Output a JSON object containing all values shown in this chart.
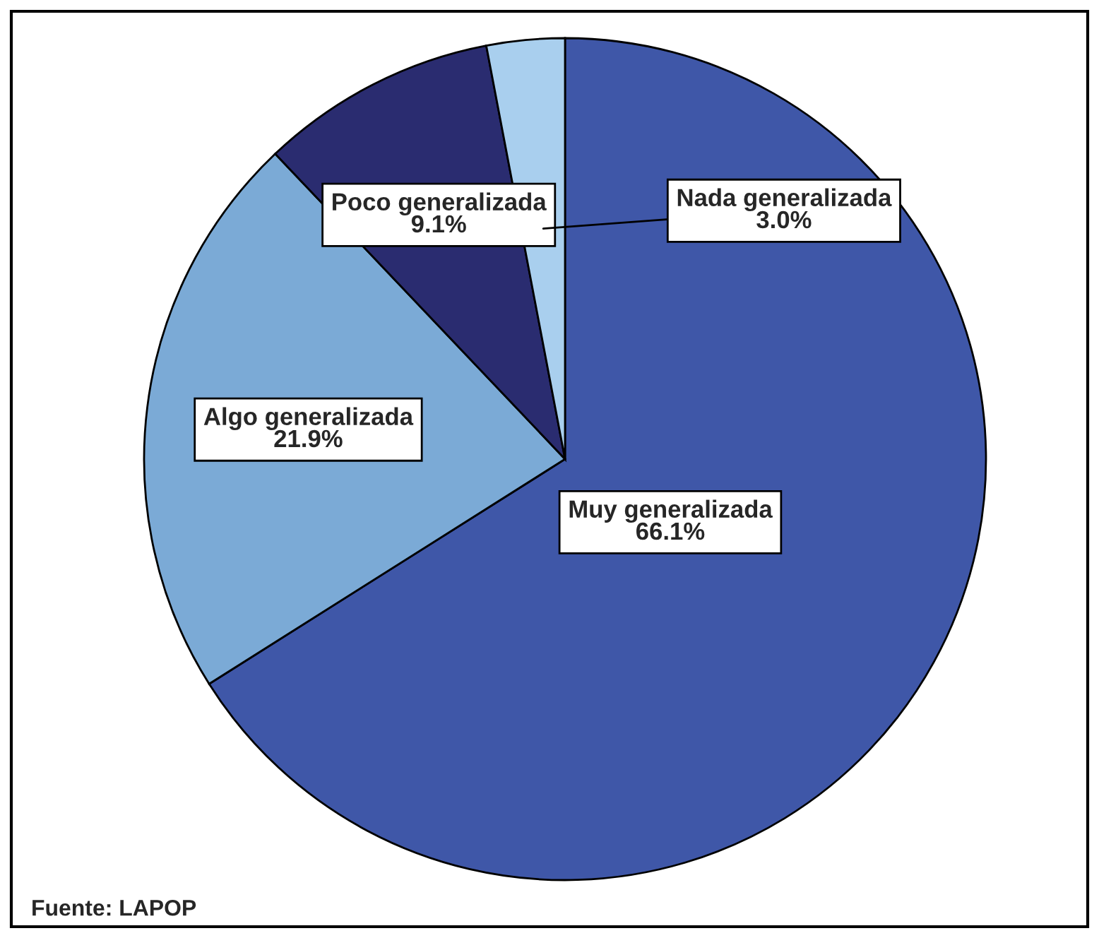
{
  "chart_data": {
    "type": "pie",
    "categories": [
      "Muy generalizada",
      "Algo generalizada",
      "Poco generalizada",
      "Nada generalizada"
    ],
    "values": [
      66.1,
      21.9,
      9.1,
      3.0
    ],
    "colors": [
      "#3f57a8",
      "#7baad6",
      "#2a2c70",
      "#a9cfee"
    ],
    "value_labels": [
      "66.1%",
      "21.9%",
      "9.1%",
      "3.0%"
    ],
    "annotations": [
      "Fuente: LAPOP"
    ]
  }
}
